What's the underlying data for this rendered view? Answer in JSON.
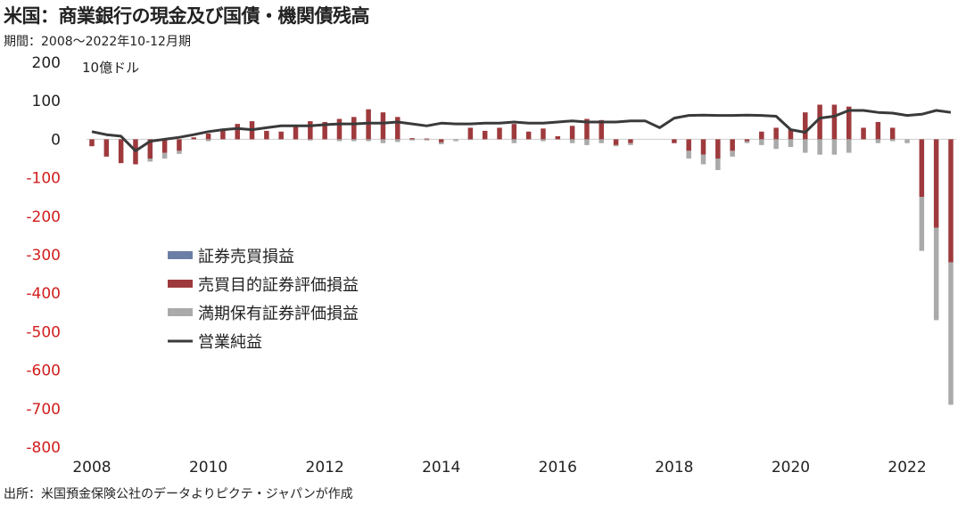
{
  "title": "米国：商業銀行の現金及び国債・機関債残高",
  "subtitle": "期間：2008～2022年10-12月期",
  "source": "出所：米国預金保険公社のデータよりピクテ・ジャパンが作成",
  "unit_label": "10億ドル",
  "colors": {
    "trading_gain": "#6b7fa6",
    "trading_securities": "#9e3a3d",
    "htm_securities": "#aaaaaa",
    "operating_income": "#3a3a3a",
    "negative_tick": "#d11e1e",
    "positive_tick": "#222222"
  },
  "chart_data": {
    "type": "bar",
    "stacked": true,
    "ylim": [
      -800,
      200
    ],
    "yticks": [
      200,
      100,
      0,
      -100,
      -200,
      -300,
      -400,
      -500,
      -600,
      -700,
      -800
    ],
    "ytick_labels": [
      "200",
      "100",
      "0",
      "-100",
      "-200",
      "-300",
      "-400",
      "-500",
      "-600",
      "-700",
      "-800"
    ],
    "x_start": "2008 Q1",
    "x_end": "2022 Q4",
    "xtick_labels": [
      "2008",
      "2010",
      "2012",
      "2014",
      "2016",
      "2018",
      "2020",
      "2022"
    ],
    "legend_position": "middle-left",
    "legend": [
      {
        "name": "証券売買損益",
        "kind": "bar",
        "color_key": "trading_gain"
      },
      {
        "name": "売買目的証券評価損益",
        "kind": "bar",
        "color_key": "trading_securities"
      },
      {
        "name": "満期保有証券評価損益",
        "kind": "bar",
        "color_key": "htm_securities"
      },
      {
        "name": "営業純益",
        "kind": "line",
        "color_key": "operating_income"
      }
    ],
    "series": [
      {
        "name": "証券売買損益",
        "values": [
          0,
          0,
          0,
          0,
          0,
          0,
          0,
          0,
          0,
          0,
          0,
          0,
          0,
          0,
          0,
          0,
          0,
          0,
          0,
          0,
          0,
          0,
          0,
          0,
          0,
          0,
          0,
          0,
          0,
          0,
          0,
          0,
          0,
          0,
          0,
          0,
          0,
          0,
          0,
          0,
          0,
          0,
          0,
          0,
          0,
          0,
          0,
          0,
          0,
          0,
          0,
          0,
          0,
          0,
          0,
          0,
          0,
          0,
          0,
          0
        ]
      },
      {
        "name": "売買目的証券評価損益",
        "values": [
          -18,
          -45,
          -62,
          -65,
          -50,
          -35,
          -30,
          5,
          15,
          25,
          40,
          47,
          22,
          20,
          38,
          47,
          45,
          53,
          58,
          78,
          70,
          58,
          3,
          2,
          -8,
          0,
          30,
          22,
          30,
          40,
          20,
          28,
          8,
          35,
          53,
          50,
          -15,
          -10,
          0,
          0,
          -10,
          -30,
          -40,
          -50,
          -30,
          -5,
          20,
          30,
          25,
          70,
          90,
          90,
          85,
          30,
          45,
          30,
          0,
          -150,
          -230,
          -320
        ]
      },
      {
        "name": "満期保有証券評価損益",
        "values": [
          0,
          0,
          0,
          0,
          -8,
          -15,
          -8,
          0,
          -5,
          0,
          0,
          0,
          0,
          0,
          0,
          -3,
          0,
          -5,
          -5,
          -5,
          -10,
          -7,
          -3,
          -3,
          -5,
          -5,
          -2,
          0,
          0,
          -10,
          0,
          -5,
          0,
          -10,
          -15,
          -10,
          -3,
          -5,
          0,
          0,
          0,
          -20,
          -25,
          -30,
          -15,
          -5,
          -15,
          -25,
          -20,
          -35,
          -40,
          -40,
          -35,
          0,
          -10,
          -5,
          -10,
          -140,
          -240,
          -370
        ]
      },
      {
        "name": "営業純益",
        "values": [
          20,
          12,
          8,
          -30,
          -5,
          0,
          5,
          12,
          20,
          25,
          28,
          25,
          30,
          35,
          35,
          35,
          38,
          40,
          40,
          42,
          42,
          45,
          40,
          35,
          42,
          40,
          40,
          42,
          42,
          45,
          42,
          42,
          45,
          48,
          45,
          45,
          45,
          48,
          48,
          30,
          55,
          62,
          63,
          62,
          62,
          63,
          62,
          60,
          25,
          18,
          55,
          60,
          75,
          75,
          70,
          68,
          62,
          65,
          75,
          70
        ]
      }
    ]
  }
}
